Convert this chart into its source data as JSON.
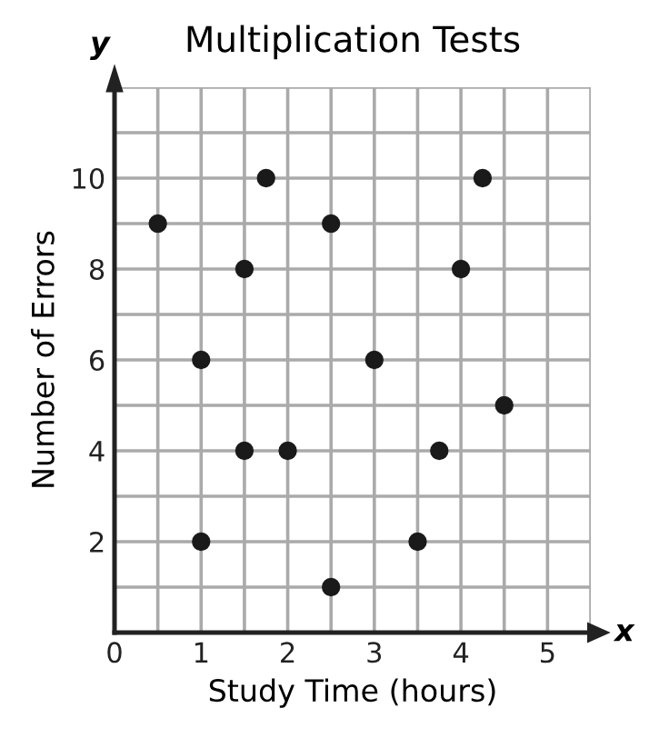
{
  "chart_data": {
    "type": "scatter",
    "title": "Multiplication Tests",
    "xlabel": "Study Time (hours)",
    "ylabel": "Number of Errors",
    "x": [
      0.5,
      1,
      1,
      1.5,
      1.5,
      1.75,
      2,
      2.5,
      2.5,
      3,
      3.5,
      3.75,
      4,
      4.25,
      4.5
    ],
    "values": [
      9,
      6,
      2,
      8,
      4,
      10,
      4,
      9,
      1,
      6,
      2,
      4,
      8,
      10,
      5
    ],
    "color": "#1a1a1a",
    "marker": "circle",
    "grid": true,
    "xlim": [
      0,
      5.5
    ],
    "ylim": [
      0,
      12
    ],
    "xticks": [
      0,
      {
        "value": 0.5,
        "label": null
      },
      1,
      {
        "value": 1.5,
        "label": null
      },
      2,
      {
        "value": 2.5,
        "label": null
      },
      3,
      {
        "value": 3.5,
        "label": null
      },
      4,
      {
        "value": 4.5,
        "label": null
      },
      5,
      {
        "value": 5.5,
        "label": null
      }
    ],
    "yticks": [
      {
        "value": 0,
        "label": null
      },
      {
        "value": 1,
        "label": null
      },
      2,
      {
        "value": 3,
        "label": null
      },
      4,
      {
        "value": 5,
        "label": null
      },
      6,
      {
        "value": 7,
        "label": null
      },
      8,
      {
        "value": 9,
        "label": null
      },
      10,
      {
        "value": 11,
        "label": null
      },
      {
        "value": 12,
        "label": null
      }
    ],
    "annotations": [
      "y",
      "x"
    ]
  }
}
